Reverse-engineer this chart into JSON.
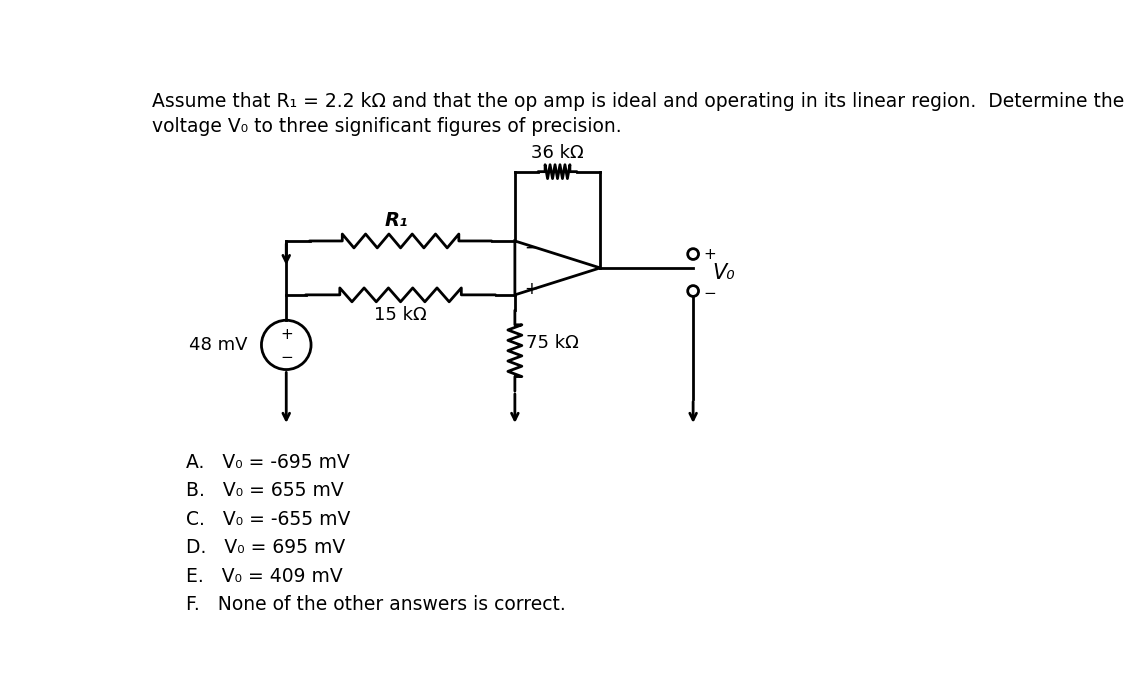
{
  "title_line1": "Assume that R₁ = 2.2 kΩ and that the op amp is ideal and operating in its linear region.  Determine the",
  "title_line2": "voltage V₀ to three significant figures of precision.",
  "bg_color": "#ffffff",
  "text_color": "#000000",
  "choices": [
    "A.   V₀ = -695 mV",
    "B.   V₀ = 655 mV",
    "C.   V₀ = -655 mV",
    "D.   V₀ = 695 mV",
    "E.   V₀ = 409 mV",
    "F.   None of the other answers is correct."
  ],
  "resistor_36k": "36 kΩ",
  "resistor_R1": "R₁",
  "resistor_15k": "15 kΩ",
  "resistor_75k": "75 kΩ",
  "voltage_source": "48 mV",
  "output_label": "V₀",
  "font_size_title": 13.5,
  "font_size_circuit": 13,
  "font_size_choices": 13.5,
  "lw": 2.0
}
